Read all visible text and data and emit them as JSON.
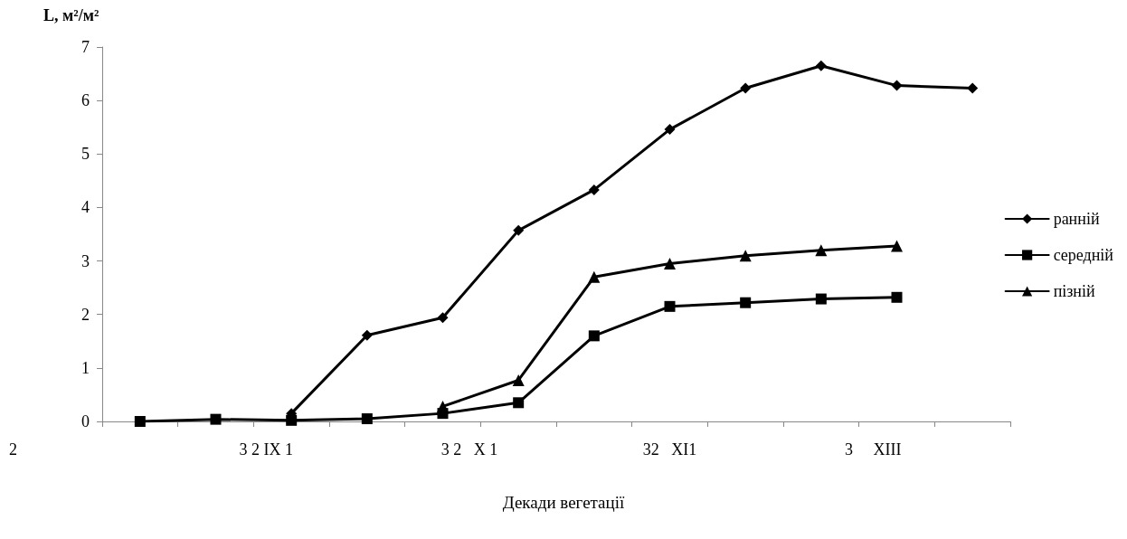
{
  "chart_data": {
    "type": "line",
    "ylabel": "L, м²/м²",
    "xlabel": "Декади вегетації",
    "categories": [
      null,
      null,
      null,
      null,
      null,
      null,
      null,
      null,
      null,
      null,
      null,
      null
    ],
    "annotations": [
      "2",
      "3 2 IX 1",
      "3 2   X 1",
      "32   XI1",
      "3     XIII"
    ],
    "series": [
      {
        "name": "ранній",
        "color": "#000000",
        "marker": "diamond",
        "values": [
          null,
          null,
          0.15,
          1.61,
          1.94,
          3.57,
          4.33,
          5.46,
          6.23,
          6.65,
          6.28,
          6.23
        ]
      },
      {
        "name": "середній",
        "color": "#000000",
        "marker": "square",
        "values": [
          0.0,
          0.04,
          0.02,
          0.05,
          0.15,
          0.35,
          1.6,
          2.15,
          2.22,
          2.29,
          2.32,
          null
        ]
      },
      {
        "name": "пізній",
        "color": "#000000",
        "marker": "triangle",
        "values": [
          null,
          null,
          null,
          null,
          0.28,
          0.77,
          2.7,
          2.95,
          3.1,
          3.2,
          3.28,
          null
        ]
      }
    ],
    "ylim": [
      0,
      7
    ],
    "yticks": [
      0,
      1,
      2,
      3,
      4,
      5,
      6,
      7
    ],
    "grid": false,
    "legend": "right"
  }
}
